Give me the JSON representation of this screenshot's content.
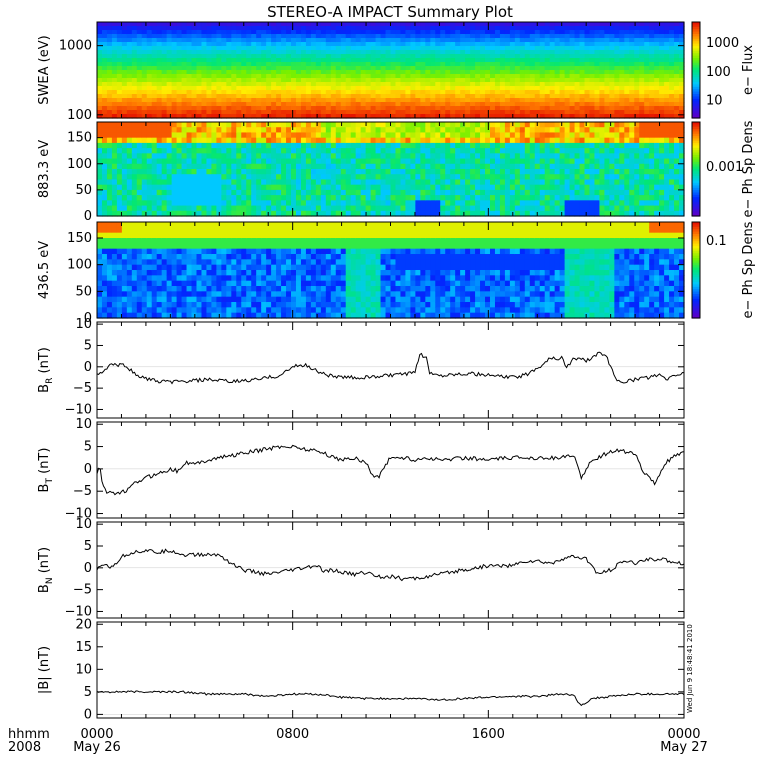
{
  "title": "STEREO-A IMPACT Summary Plot",
  "x_axis": {
    "row1_label": "hhmm",
    "row2_label": "2008",
    "ticks": [
      {
        "hour": 0,
        "time": "0000",
        "date": "May 26"
      },
      {
        "hour": 8,
        "time": "0800",
        "date": ""
      },
      {
        "hour": 16,
        "time": "1600",
        "date": ""
      },
      {
        "hour": 24,
        "time": "0000",
        "date": "May 27"
      }
    ]
  },
  "stamp": "Wed Jun  9 18:48:41 2010",
  "colors": {
    "axis": "#000000",
    "line": "#000000",
    "background": "#ffffff"
  },
  "chart_data": [
    {
      "type": "heatmap",
      "id": "swea",
      "ylabel": "SWEA (eV)",
      "yscale": "log",
      "ylim": [
        90,
        2200
      ],
      "yticks": [
        {
          "v": 100,
          "label": "100"
        },
        {
          "v": 1000,
          "label": "1000"
        }
      ],
      "colorbar_label": "e− Flux",
      "colorbar_ticks": [
        {
          "label": "10"
        },
        {
          "label": "100"
        },
        {
          "label": "1000"
        }
      ],
      "description_rows_energy": [
        2000,
        1500,
        1000,
        700,
        400,
        250,
        150,
        100
      ],
      "level_by_row": [
        0.08,
        0.2,
        0.35,
        0.5,
        0.62,
        0.78,
        0.9,
        0.97
      ]
    },
    {
      "type": "heatmap",
      "id": "pad883",
      "ylabel": "883.3 eV",
      "ylim": [
        0,
        180
      ],
      "yticks": [
        {
          "v": 0,
          "label": "0"
        },
        {
          "v": 50,
          "label": "50"
        },
        {
          "v": 100,
          "label": "100"
        },
        {
          "v": 150,
          "label": "150"
        }
      ],
      "colorbar_label": "e− Ph Sp Dens",
      "colorbar_ticks": [
        {
          "label": "0.001"
        }
      ]
    },
    {
      "type": "heatmap",
      "id": "pad436",
      "ylabel": "436.5 eV",
      "ylim": [
        0,
        180
      ],
      "yticks": [
        {
          "v": 0,
          "label": "0"
        },
        {
          "v": 50,
          "label": "50"
        },
        {
          "v": 100,
          "label": "100"
        },
        {
          "v": 150,
          "label": "150"
        }
      ],
      "colorbar_label": "e− Ph Sp Dens",
      "colorbar_ticks": [
        {
          "label": "0.1"
        }
      ]
    },
    {
      "type": "line",
      "id": "br",
      "ylabel": "B",
      "ylabel_sub": "R",
      "ylabel_unit": " (nT)",
      "ylim": [
        -12,
        10.5
      ],
      "yticks": [
        {
          "v": -10,
          "label": "−10"
        },
        {
          "v": -5,
          "label": "−5"
        },
        {
          "v": 0,
          "label": "0"
        },
        {
          "v": 5,
          "label": "5"
        },
        {
          "v": 10,
          "label": "10"
        }
      ],
      "knots": [
        [
          0,
          -2
        ],
        [
          0.3,
          -1
        ],
        [
          0.5,
          0.5
        ],
        [
          1.2,
          0.3
        ],
        [
          1.6,
          -2
        ],
        [
          2.5,
          -3.5
        ],
        [
          3.5,
          -3.5
        ],
        [
          4.5,
          -3
        ],
        [
          5.5,
          -3.5
        ],
        [
          6.5,
          -3
        ],
        [
          7,
          -2.5
        ],
        [
          7.5,
          -2
        ],
        [
          8,
          0
        ],
        [
          8.5,
          0.5
        ],
        [
          9,
          -1
        ],
        [
          9.5,
          -2
        ],
        [
          10,
          -2.5
        ],
        [
          11,
          -2.5
        ],
        [
          12,
          -2
        ],
        [
          13,
          -1.5
        ],
        [
          13.2,
          3
        ],
        [
          13.5,
          2
        ],
        [
          13.6,
          -1.5
        ],
        [
          14,
          -2
        ],
        [
          15,
          -1.5
        ],
        [
          16,
          -2
        ],
        [
          17,
          -2.5
        ],
        [
          17.5,
          -2
        ],
        [
          18.2,
          0.5
        ],
        [
          18.5,
          2
        ],
        [
          19,
          2
        ],
        [
          19.2,
          0
        ],
        [
          19.5,
          2
        ],
        [
          20,
          1.5
        ],
        [
          20.5,
          3
        ],
        [
          20.8,
          3
        ],
        [
          21,
          0
        ],
        [
          21.2,
          -3
        ],
        [
          21.5,
          -3.5
        ],
        [
          22,
          -3
        ],
        [
          22.5,
          -2.5
        ],
        [
          23,
          -2
        ],
        [
          23.3,
          -3
        ],
        [
          23.6,
          -2
        ],
        [
          24,
          -1.5
        ]
      ],
      "noise": 0.9
    },
    {
      "type": "line",
      "id": "bt",
      "ylabel": "B",
      "ylabel_sub": "T",
      "ylabel_unit": " (nT)",
      "ylim": [
        -11,
        10.5
      ],
      "yticks": [
        {
          "v": -10,
          "label": "−10"
        },
        {
          "v": -5,
          "label": "−5"
        },
        {
          "v": 0,
          "label": "0"
        },
        {
          "v": 5,
          "label": "5"
        },
        {
          "v": 10,
          "label": "10"
        }
      ],
      "knots": [
        [
          0,
          -1
        ],
        [
          0.1,
          1
        ],
        [
          0.2,
          -3
        ],
        [
          0.4,
          -5
        ],
        [
          0.8,
          -5.5
        ],
        [
          1.2,
          -5
        ],
        [
          1.6,
          -3
        ],
        [
          2,
          -2
        ],
        [
          2.5,
          -1
        ],
        [
          3,
          0
        ],
        [
          3.3,
          -0.5
        ],
        [
          3.6,
          1.5
        ],
        [
          4,
          1
        ],
        [
          4.5,
          2
        ],
        [
          5,
          2.5
        ],
        [
          5.5,
          3
        ],
        [
          6,
          3.5
        ],
        [
          6.5,
          4
        ],
        [
          7,
          4.5
        ],
        [
          7.5,
          5
        ],
        [
          8,
          5
        ],
        [
          8.5,
          4.5
        ],
        [
          9,
          4
        ],
        [
          9.5,
          3
        ],
        [
          10,
          2
        ],
        [
          10.5,
          2.5
        ],
        [
          11,
          1.5
        ],
        [
          11.2,
          -1
        ],
        [
          11.5,
          -2
        ],
        [
          11.8,
          1
        ],
        [
          12,
          2.5
        ],
        [
          12.5,
          2.5
        ],
        [
          13,
          2
        ],
        [
          13.5,
          2.5
        ],
        [
          14,
          2
        ],
        [
          15,
          2.5
        ],
        [
          16,
          2
        ],
        [
          17,
          2.5
        ],
        [
          18,
          2.5
        ],
        [
          19,
          2.5
        ],
        [
          19.5,
          3
        ],
        [
          19.8,
          -2
        ],
        [
          20.1,
          1
        ],
        [
          20.5,
          2.5
        ],
        [
          21,
          4
        ],
        [
          21.5,
          4
        ],
        [
          22,
          3.5
        ],
        [
          22.3,
          -0.5
        ],
        [
          22.6,
          -2
        ],
        [
          22.8,
          -3.5
        ],
        [
          23.2,
          1
        ],
        [
          23.5,
          2.5
        ],
        [
          24,
          3.5
        ]
      ],
      "noise": 0.9
    },
    {
      "type": "line",
      "id": "bn",
      "ylabel": "B",
      "ylabel_sub": "N",
      "ylabel_unit": " (nT)",
      "ylim": [
        -11.5,
        10.5
      ],
      "yticks": [
        {
          "v": -10,
          "label": "−10"
        },
        {
          "v": -5,
          "label": "−5"
        },
        {
          "v": 0,
          "label": "0"
        },
        {
          "v": 5,
          "label": "5"
        },
        {
          "v": 10,
          "label": "10"
        }
      ],
      "knots": [
        [
          0,
          -0.5
        ],
        [
          0.3,
          1
        ],
        [
          0.6,
          0
        ],
        [
          1,
          2.5
        ],
        [
          1.4,
          3.5
        ],
        [
          2,
          4
        ],
        [
          2.5,
          3.5
        ],
        [
          3,
          4
        ],
        [
          3.5,
          3
        ],
        [
          4,
          3
        ],
        [
          4.5,
          3
        ],
        [
          5,
          3
        ],
        [
          5.5,
          1
        ],
        [
          6,
          -0.5
        ],
        [
          6.5,
          -1
        ],
        [
          7,
          -1.5
        ],
        [
          7.5,
          -1
        ],
        [
          8,
          -0.5
        ],
        [
          8.5,
          0
        ],
        [
          9,
          0.5
        ],
        [
          9.3,
          -1
        ],
        [
          9.6,
          -0.5
        ],
        [
          10,
          -1
        ],
        [
          10.5,
          -1.5
        ],
        [
          11,
          -1
        ],
        [
          11.5,
          -2
        ],
        [
          12,
          -2
        ],
        [
          12.5,
          -2.5
        ],
        [
          13,
          -2.5
        ],
        [
          13.5,
          -2
        ],
        [
          14,
          -1.5
        ],
        [
          14.5,
          -1
        ],
        [
          15,
          -0.5
        ],
        [
          15.5,
          0
        ],
        [
          16,
          0.5
        ],
        [
          17,
          0.5
        ],
        [
          17.5,
          1.5
        ],
        [
          18,
          1.5
        ],
        [
          18.5,
          1
        ],
        [
          19,
          2
        ],
        [
          19.5,
          2.5
        ],
        [
          20,
          2
        ],
        [
          20.5,
          -1.5
        ],
        [
          21,
          -0.5
        ],
        [
          21.5,
          1.5
        ],
        [
          22,
          1
        ],
        [
          22.5,
          2
        ],
        [
          23,
          2
        ],
        [
          23.5,
          1.5
        ],
        [
          24,
          1
        ]
      ],
      "noise": 0.9
    },
    {
      "type": "line",
      "id": "bmag",
      "ylabel": "|B| (nT)",
      "ylim": [
        -0.8,
        20.5
      ],
      "yticks": [
        {
          "v": 0,
          "label": "0"
        },
        {
          "v": 5,
          "label": "5"
        },
        {
          "v": 10,
          "label": "10"
        },
        {
          "v": 15,
          "label": "15"
        },
        {
          "v": 20,
          "label": "20"
        }
      ],
      "knots": [
        [
          0,
          5
        ],
        [
          2,
          5
        ],
        [
          3.5,
          5
        ],
        [
          4.5,
          4.5
        ],
        [
          6,
          4.5
        ],
        [
          7,
          4
        ],
        [
          8,
          4.5
        ],
        [
          9,
          4.5
        ],
        [
          10,
          3.8
        ],
        [
          11,
          3.5
        ],
        [
          12,
          3.5
        ],
        [
          13,
          3.5
        ],
        [
          14,
          3.2
        ],
        [
          15,
          3.5
        ],
        [
          16,
          3.8
        ],
        [
          17,
          4
        ],
        [
          18,
          4
        ],
        [
          19,
          4.5
        ],
        [
          19.5,
          4.2
        ],
        [
          19.8,
          1.8
        ],
        [
          20.2,
          3.5
        ],
        [
          21,
          4
        ],
        [
          22,
          4.5
        ],
        [
          23,
          4.5
        ],
        [
          24,
          4.5
        ]
      ],
      "noise": 0.45
    }
  ]
}
